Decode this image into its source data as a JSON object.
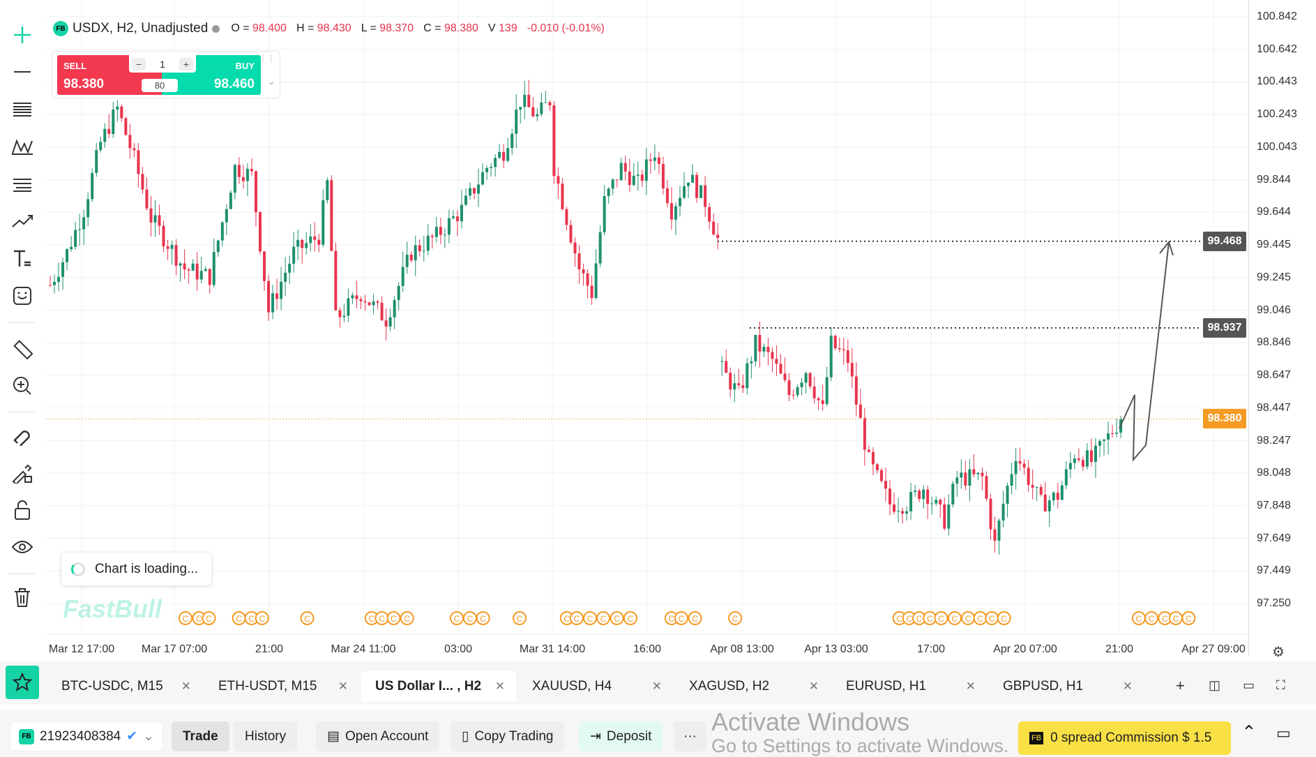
{
  "legend": {
    "symbol": "USDX, H2, Unadjusted",
    "o_label": "O =",
    "o": "98.400",
    "h_label": "H =",
    "h": "98.430",
    "l_label": "L =",
    "l": "98.370",
    "c_label": "C =",
    "c": "98.380",
    "v_label": "V",
    "v": "139",
    "change": "-0.010 (-0.01%)",
    "logo": "FB"
  },
  "trade_widget": {
    "sell_label": "SELL",
    "sell_price": "98.380",
    "buy_label": "BUY",
    "buy_price": "98.460",
    "quantity": "1",
    "spread": "80",
    "minus": "−",
    "plus": "+"
  },
  "price_axis": [
    "100.842",
    "100.642",
    "100.443",
    "100.243",
    "100.043",
    "99.844",
    "99.644",
    "99.445",
    "99.245",
    "99.046",
    "98.846",
    "98.647",
    "98.447",
    "98.247",
    "98.048",
    "97.848",
    "97.649",
    "97.449",
    "97.250"
  ],
  "price_tags": {
    "upper_level": "99.468",
    "lower_level": "98.937",
    "current": "98.380"
  },
  "time_axis": [
    "Mar 12 17:00",
    "Mar 17 07:00",
    "21:00",
    "Mar 24 11:00",
    "03:00",
    "Mar 31 14:00",
    "16:00",
    "Apr 08 13:00",
    "Apr 13 03:00",
    "17:00",
    "Apr 20 07:00",
    "21:00",
    "Apr 27 09:00"
  ],
  "loading_text": "Chart is loading...",
  "watermark": "FastBull",
  "colors": {
    "up": "#1e8f6e",
    "down": "#e8344e",
    "accent": "#16d3a6",
    "current": "#f59a23",
    "level": "#555555"
  },
  "candle_anchors": [
    [
      0,
      99.2
    ],
    [
      4,
      99.4
    ],
    [
      8,
      99.66
    ],
    [
      12,
      100.07
    ],
    [
      16,
      100.28
    ],
    [
      20,
      99.97
    ],
    [
      24,
      99.61
    ],
    [
      32,
      99.3
    ],
    [
      38,
      99.25
    ],
    [
      44,
      99.92
    ],
    [
      48,
      99.87
    ],
    [
      52,
      99.04
    ],
    [
      58,
      99.4
    ],
    [
      64,
      99.5
    ],
    [
      66,
      99.82
    ],
    [
      68,
      98.99
    ],
    [
      74,
      99.15
    ],
    [
      80,
      98.99
    ],
    [
      86,
      99.4
    ],
    [
      92,
      99.5
    ],
    [
      98,
      99.66
    ],
    [
      104,
      99.92
    ],
    [
      108,
      100.02
    ],
    [
      112,
      100.33
    ],
    [
      116,
      100.23
    ],
    [
      119,
      100.33
    ],
    [
      120,
      99.92
    ],
    [
      126,
      99.3
    ],
    [
      129,
      99.15
    ],
    [
      132,
      99.71
    ],
    [
      136,
      99.92
    ],
    [
      140,
      99.82
    ],
    [
      144,
      100.02
    ],
    [
      148,
      99.66
    ],
    [
      152,
      99.87
    ],
    [
      156,
      99.71
    ],
    [
      159,
      99.48
    ],
    [
      160,
      98.68
    ],
    [
      164,
      98.53
    ],
    [
      168,
      98.84
    ],
    [
      172,
      98.74
    ],
    [
      176,
      98.53
    ],
    [
      180,
      98.68
    ],
    [
      184,
      98.43
    ],
    [
      186,
      98.84
    ],
    [
      190,
      98.74
    ],
    [
      192,
      98.48
    ],
    [
      195,
      98.12
    ],
    [
      200,
      97.86
    ],
    [
      204,
      97.86
    ],
    [
      208,
      97.96
    ],
    [
      213,
      97.76
    ],
    [
      216,
      98.02
    ],
    [
      222,
      98.02
    ],
    [
      225,
      97.61
    ],
    [
      227,
      97.86
    ],
    [
      230,
      98.17
    ],
    [
      236,
      97.86
    ],
    [
      240,
      97.91
    ],
    [
      244,
      98.17
    ],
    [
      248,
      98.12
    ],
    [
      252,
      98.27
    ],
    [
      255,
      98.38
    ]
  ],
  "tabs": [
    {
      "label": "BTC-USDC, M15"
    },
    {
      "label": "ETH-USDT, M15"
    },
    {
      "label": "US Dollar I... , H2",
      "active": true
    },
    {
      "label": "XAUUSD, H4"
    },
    {
      "label": "XAGUSD, H2"
    },
    {
      "label": "EURUSD, H1"
    },
    {
      "label": "GBPUSD, H1"
    }
  ],
  "bottom": {
    "account": "21923408384",
    "trade": "Trade",
    "history": "History",
    "open_account": "Open Account",
    "copy_trading": "Copy Trading",
    "deposit": "Deposit",
    "more": "···",
    "promo": "0 spread Commission $ 1.5",
    "activate1": "Activate Windows",
    "activate2": "Go to Settings to activate Windows."
  }
}
